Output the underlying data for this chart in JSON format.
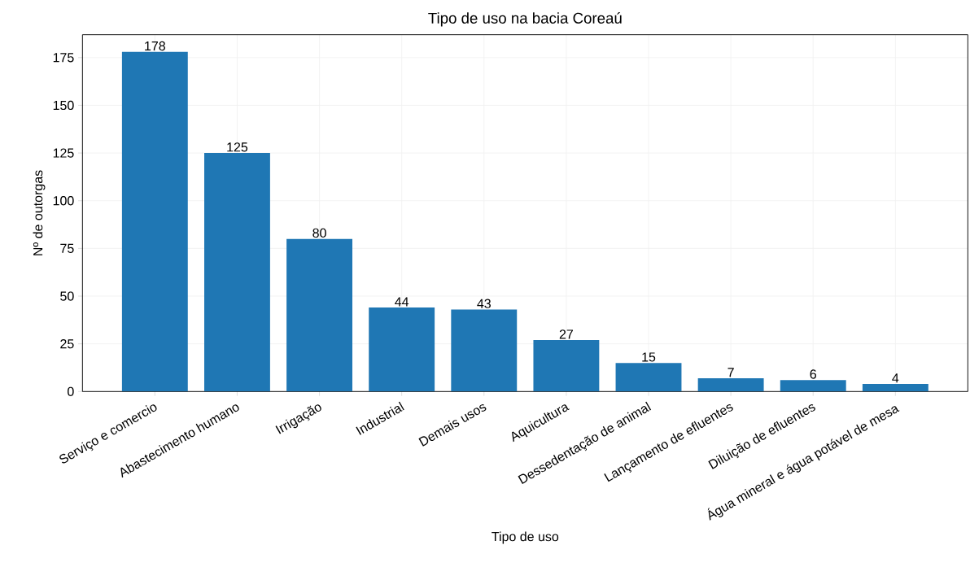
{
  "chart_data": {
    "type": "bar",
    "title": "Tipo de uso na bacia Coreaú",
    "xlabel": "Tipo de uso",
    "ylabel": "Nº de outorgas",
    "categories": [
      "Serviço e comercio",
      "Abastecimento humano",
      "Irrigação",
      "Industrial",
      "Demais usos",
      "Aquicultura",
      "Dessedentação de animal",
      "Lançamento de efluentes",
      "Diluição de efluentes",
      "Água mineral e água potável de mesa"
    ],
    "values": [
      178,
      125,
      80,
      44,
      43,
      27,
      15,
      7,
      6,
      4
    ],
    "color": "#1f77b4",
    "ylim": [
      0,
      187
    ],
    "yticks": [
      0,
      25,
      50,
      75,
      100,
      125,
      150,
      175
    ],
    "grid": true,
    "data_labels": true
  }
}
